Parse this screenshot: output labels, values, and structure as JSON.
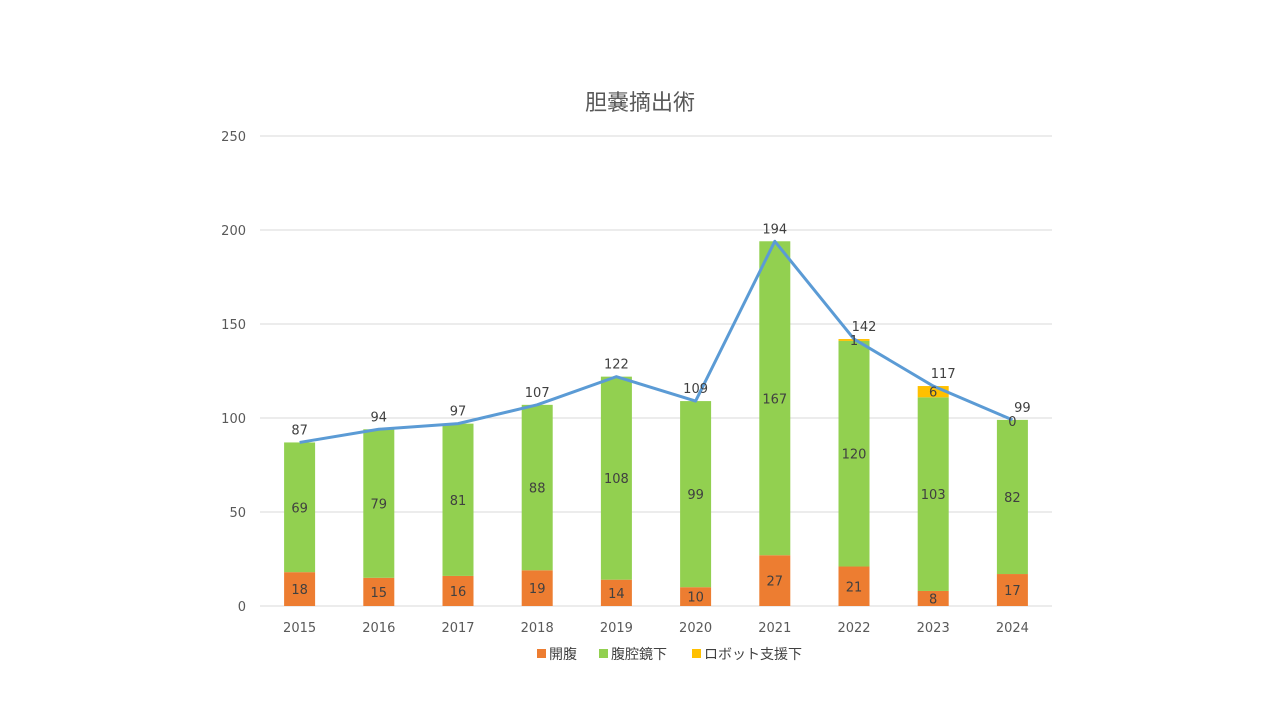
{
  "chart_data": {
    "type": "bar",
    "stacked": true,
    "title": "胆嚢摘出術",
    "xlabel": "",
    "ylabel": "",
    "categories": [
      "2015",
      "2016",
      "2017",
      "2018",
      "2019",
      "2020",
      "2021",
      "2022",
      "2023",
      "2024"
    ],
    "ylim": [
      0,
      250
    ],
    "yticks": [
      0,
      50,
      100,
      150,
      200,
      250
    ],
    "grid": true,
    "legend": "bottom",
    "series": [
      {
        "name": "開腹",
        "color": "#ED7D31",
        "values": [
          18,
          15,
          16,
          19,
          14,
          10,
          27,
          21,
          8,
          17
        ],
        "labels": [
          "18",
          "15",
          "16",
          "19",
          "14",
          "10",
          "27",
          "21",
          "8",
          "17"
        ]
      },
      {
        "name": "腹腔鏡下",
        "color": "#92D050",
        "values": [
          69,
          79,
          81,
          88,
          108,
          99,
          167,
          120,
          103,
          82
        ],
        "labels": [
          "69",
          "79",
          "81",
          "88",
          "108",
          "99",
          "167",
          "120",
          "103",
          "82"
        ]
      },
      {
        "name": "ロボット支援下",
        "color": "#FFC000",
        "values": [
          0,
          0,
          0,
          0,
          0,
          0,
          0,
          1,
          6,
          0
        ],
        "labels": [
          "",
          "",
          "",
          "",
          "",
          "",
          "",
          "1",
          "6",
          "0"
        ]
      }
    ],
    "total_line": {
      "color": "#5B9BD5",
      "values": [
        87,
        94,
        97,
        107,
        122,
        109,
        194,
        142,
        117,
        99
      ],
      "labels": [
        "87",
        "94",
        "97",
        "107",
        "122",
        "109",
        "194",
        "142",
        "117",
        "99"
      ]
    }
  }
}
